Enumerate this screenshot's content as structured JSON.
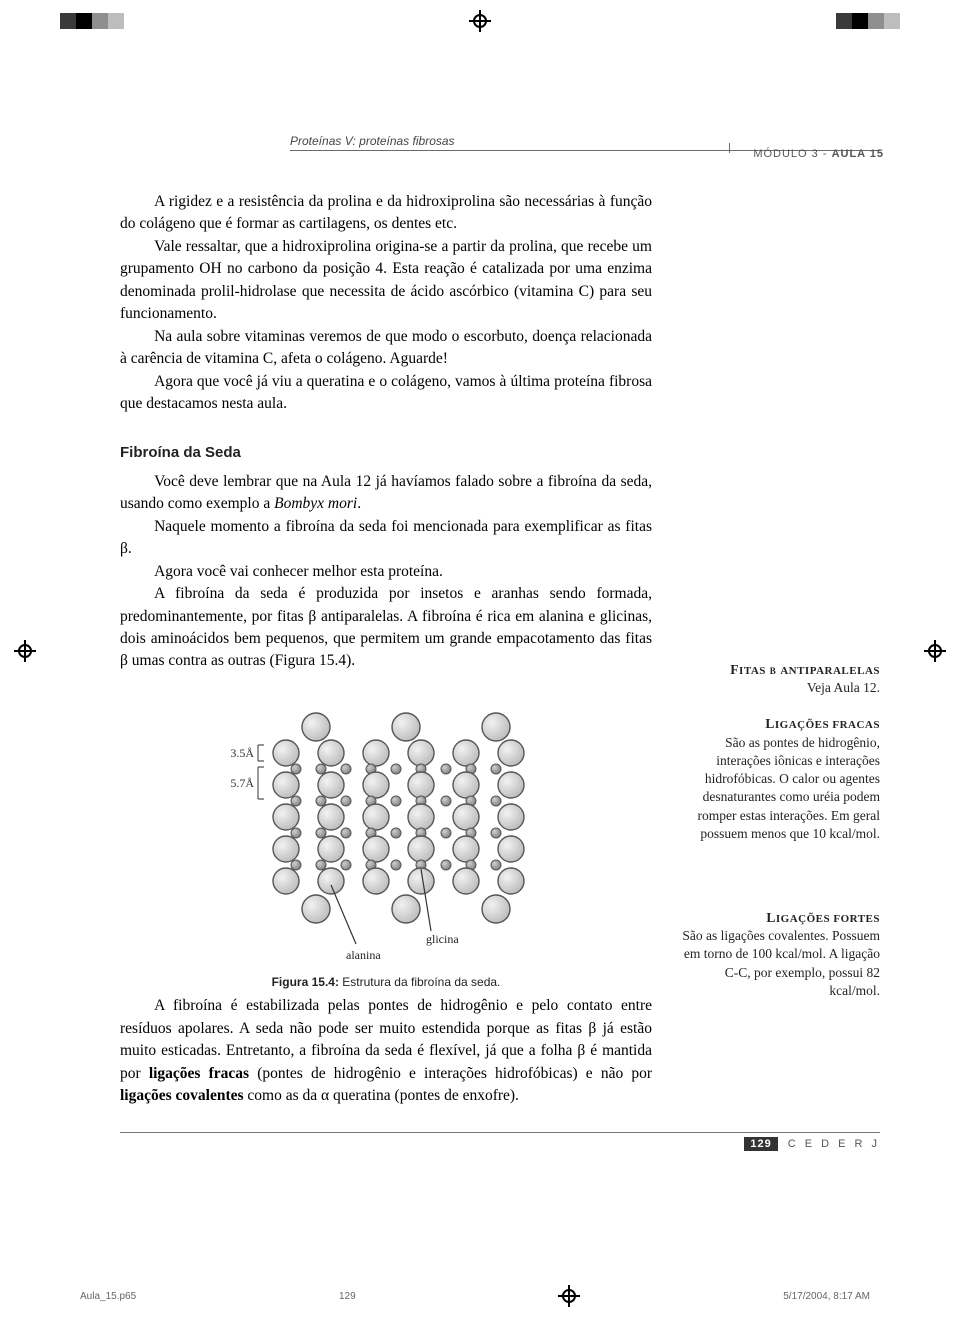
{
  "running_head": {
    "title_italic": "Proteínas V: proteínas fibrosas",
    "module_label": "MÓDULO 3 - ",
    "aula_label": "AULA 15"
  },
  "paragraphs": {
    "p1": "A rigidez e a resistência da prolina e da hidroxiprolina são necessárias à função do colágeno que é formar as cartilagens, os dentes etc.",
    "p2": "Vale ressaltar, que a hidroxiprolina origina-se a partir da prolina, que recebe um grupamento OH no carbono da posição 4. Esta reação é catalizada por uma enzima denominada prolil-hidrolase que necessita de ácido ascórbico (vitamina C) para seu funcionamento.",
    "p3": "Na aula sobre vitaminas veremos de que modo o escorbuto, doença relacionada à carência de vitamina C, afeta o colágeno. Aguarde!",
    "p4": "Agora que você já viu a queratina e o colágeno, vamos à última proteína fibrosa que destacamos nesta aula."
  },
  "section_heading": "Fibroína da Seda",
  "fibroina": {
    "p1a": "Você deve lembrar que na Aula 12 já havíamos falado sobre a fibroína da seda, usando como exemplo a ",
    "p1b_italic": "Bombyx mori",
    "p1c": ".",
    "p2": "Naquele momento a fibroína da seda foi mencionada para exemplificar as fitas β.",
    "p3": "Agora você vai conhecer melhor esta proteína.",
    "p4": "A fibroína da seda é produzida por insetos e aranhas sendo formada, predominantemente, por fitas β antiparalelas. A fibroína é rica em alanina e glicinas, dois aminoácidos bem pequenos, que permitem um grande empacotamento das fitas β umas contra as outras (Figura 15.4)."
  },
  "figure": {
    "dim_label_1": "3.5Å",
    "dim_label_2": "5.7Å",
    "label_alanina": "alanina",
    "label_glicina": "glicina",
    "caption_bold": "Figura 15.4:",
    "caption_rest": " Estrutura da fibroína da seda.",
    "colors": {
      "sphere_fill": "#d9d9d9",
      "sphere_stroke": "#555555",
      "small_fill": "#9a9a9a",
      "line": "#555555"
    }
  },
  "after_fig": {
    "p_html": "A fibroína é estabilizada pelas pontes de hidrogênio e pelo contato entre resíduos apolares. A seda não pode ser muito estendida porque as fitas β já estão muito esticadas. Entretanto, a fibroína da seda é flexível, já que a folha β é mantida por <b>ligações fracas</b> (pontes de hidrogênio e interações hidrofóbicas) e não por <b>ligações covalentes</b> como as da α queratina (pontes de enxofre)."
  },
  "sidenotes": {
    "fitas": {
      "title_html": "F<span style='font-variant:normal'>ITAS</span> β <span style='font-variant:normal'>ANTIPARALELAS</span>",
      "body": "Veja Aula 12."
    },
    "fracas": {
      "title": "Ligações fracas",
      "body": "São as pontes de hidrogênio, interações iônicas e interações hidrofóbicas. O calor ou agentes desnaturantes como uréia podem romper estas interações. Em geral possuem menos que 10 kcal/mol."
    },
    "fortes": {
      "title": "Ligações fortes",
      "body": "São as ligações covalentes. Possuem em torno de 100 kcal/mol. A ligação C-C, por exemplo, possui 82 kcal/mol."
    }
  },
  "footer": {
    "page_number": "129",
    "brand": "C E D E R J"
  },
  "print_footer": {
    "file": "Aula_15.p65",
    "page": "129",
    "timestamp": "5/17/2004, 8:17 AM"
  },
  "reg_colors": [
    "#3a3a3a",
    "#000000",
    "#8f8f8f",
    "#bdbdbd"
  ]
}
